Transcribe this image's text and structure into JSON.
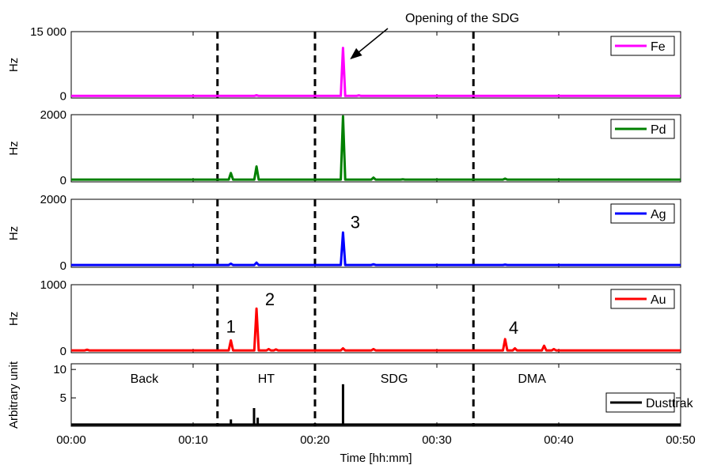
{
  "chart_data": {
    "type": "line",
    "xlabel": "Time [hh:mm]",
    "x_unit": "minutes",
    "xlim": [
      0,
      50
    ],
    "xtick_values": [
      0,
      10,
      20,
      30,
      40,
      50
    ],
    "xtick_labels": [
      "00:00",
      "00:10",
      "00:20",
      "00:30",
      "00:40",
      "00:50"
    ],
    "phase_boundaries": [
      12,
      20,
      33
    ],
    "phase_line_style": "dashed",
    "grid": false,
    "legend_position": "right",
    "annotation": {
      "text": "Opening of the SDG",
      "panel": 0,
      "x": 22.3
    },
    "panels": [
      {
        "name": "fe-panel",
        "ylabel": "Hz",
        "ylim": [
          -500,
          15000
        ],
        "yticks": [
          0,
          15000
        ],
        "ytick_labels": [
          "0",
          "15 000"
        ],
        "series": [
          {
            "name": "Fe",
            "color": "#ff00ff"
          }
        ],
        "peaks": [
          {
            "x": 15.2,
            "y": 150
          },
          {
            "x": 22.3,
            "y": 11200
          },
          {
            "x": 23.6,
            "y": 120
          }
        ],
        "baseline": 0,
        "labels": []
      },
      {
        "name": "pd-panel",
        "ylabel": "Hz",
        "ylim": [
          -50,
          2000
        ],
        "yticks": [
          0,
          2000
        ],
        "ytick_labels": [
          "0",
          "2000"
        ],
        "series": [
          {
            "name": "Pd",
            "color": "#008000"
          }
        ],
        "peaks": [
          {
            "x": 13.1,
            "y": 220
          },
          {
            "x": 15.2,
            "y": 420
          },
          {
            "x": 22.3,
            "y": 1950
          },
          {
            "x": 24.8,
            "y": 80
          },
          {
            "x": 27.2,
            "y": 30
          },
          {
            "x": 35.6,
            "y": 50
          }
        ],
        "baseline": 20,
        "labels": []
      },
      {
        "name": "ag-panel",
        "ylabel": "Hz",
        "ylim": [
          -50,
          2000
        ],
        "yticks": [
          0,
          2000
        ],
        "ytick_labels": [
          "0",
          "2000"
        ],
        "series": [
          {
            "name": "Ag",
            "color": "#0000ff"
          }
        ],
        "peaks": [
          {
            "x": 13.1,
            "y": 60
          },
          {
            "x": 15.2,
            "y": 90
          },
          {
            "x": 22.3,
            "y": 1000
          },
          {
            "x": 24.8,
            "y": 40
          },
          {
            "x": 35.6,
            "y": 30
          }
        ],
        "baseline": 20,
        "labels": [
          {
            "text": "3",
            "x": 23.3,
            "y": 1130
          }
        ]
      },
      {
        "name": "au-panel",
        "ylabel": "Hz",
        "ylim": [
          -25,
          1000
        ],
        "yticks": [
          0,
          1000
        ],
        "ytick_labels": [
          "0",
          "1000"
        ],
        "series": [
          {
            "name": "Au",
            "color": "#ff0000"
          }
        ],
        "peaks": [
          {
            "x": 1.3,
            "y": 20
          },
          {
            "x": 13.1,
            "y": 160
          },
          {
            "x": 15.2,
            "y": 640
          },
          {
            "x": 16.2,
            "y": 30
          },
          {
            "x": 16.8,
            "y": 25
          },
          {
            "x": 22.3,
            "y": 40
          },
          {
            "x": 24.8,
            "y": 30
          },
          {
            "x": 35.6,
            "y": 180
          },
          {
            "x": 36.4,
            "y": 40
          },
          {
            "x": 38.8,
            "y": 80
          },
          {
            "x": 39.6,
            "y": 30
          }
        ],
        "baseline": 10,
        "labels": [
          {
            "text": "1",
            "x": 13.1,
            "y": 280
          },
          {
            "text": "2",
            "x": 16.3,
            "y": 690
          },
          {
            "text": "4",
            "x": 36.3,
            "y": 260
          }
        ]
      },
      {
        "name": "dusttrak-panel",
        "ylabel": "Arbitrary unit",
        "ylim": [
          0,
          11
        ],
        "yticks": [
          5,
          10
        ],
        "ytick_labels": [
          "5",
          "10"
        ],
        "series": [
          {
            "name": "Dusttrak",
            "color": "#000000"
          }
        ],
        "peaks": [
          {
            "x": 13.1,
            "y": 1.2
          },
          {
            "x": 15.0,
            "y": 3.2
          },
          {
            "x": 15.3,
            "y": 1.5
          },
          {
            "x": 22.3,
            "y": 7.4
          },
          {
            "x": 33.4,
            "y": 0.3
          }
        ],
        "baseline": 0.3,
        "labels": [],
        "phase_labels": [
          {
            "text": "Back",
            "x": 6
          },
          {
            "text": "HT",
            "x": 16
          },
          {
            "text": "SDG",
            "x": 26.5
          },
          {
            "text": "DMA",
            "x": 37.8
          }
        ]
      }
    ]
  }
}
